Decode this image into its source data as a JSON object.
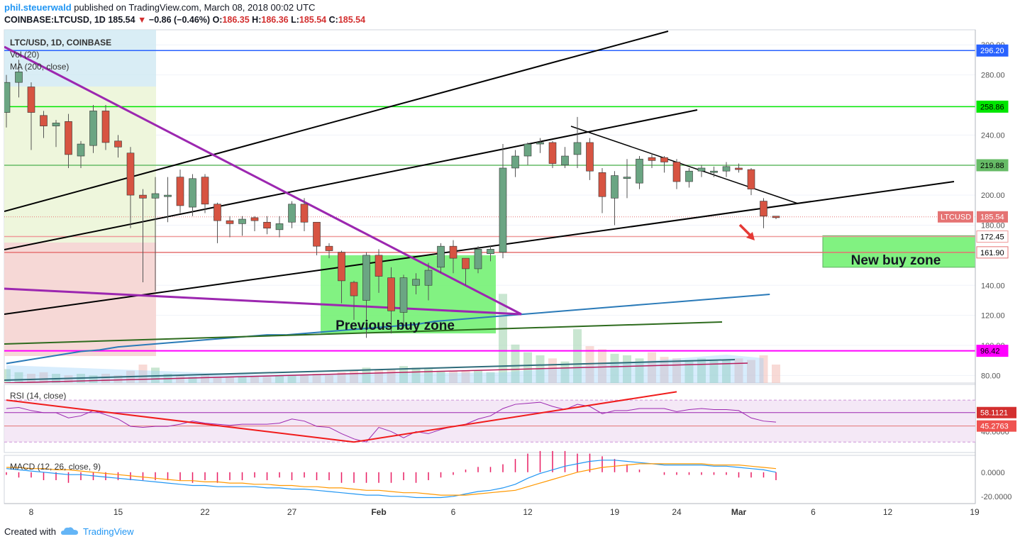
{
  "header": {
    "author": "phil.steuerwald",
    "published": "published on TradingView.com, March 08, 2018 00:02 UTC",
    "symbol_line": "COINBASE:LTCUSD, 1D",
    "price": "185.54",
    "change": "−0.86 (−0.46%)",
    "o_label": "O:",
    "o": "186.35",
    "h_label": "H:",
    "h": "186.36",
    "l_label": "L:",
    "l": "185.54",
    "c_label": "C:",
    "c": "185.54"
  },
  "footer": {
    "created_with": "Created with",
    "brand": "TradingView"
  },
  "colors": {
    "up": "#6ba583",
    "down": "#d75442",
    "buy_zone": "#6cf06c",
    "purple": "#9c27b0",
    "rsi": "#9c27b0",
    "macd": "#2196f3",
    "signal": "#ff9800"
  },
  "chart_data": {
    "type": "candlestick",
    "legend": [
      "LTC/USD, 1D, COINBASE",
      "Vol (20)",
      "MA (200, close)"
    ],
    "x_ticks": [
      "8",
      "15",
      "22",
      "27",
      "Feb",
      "6",
      "12",
      "19",
      "24",
      "Mar",
      "6",
      "12",
      "19"
    ],
    "y_ticks": [
      "300.00",
      "280.00",
      "260.00",
      "240.00",
      "220.00",
      "200.00",
      "180.00",
      "160.00",
      "140.00",
      "120.00",
      "100.00",
      "80.00"
    ],
    "ylim": [
      75,
      310
    ],
    "candles": [
      [
        255,
        275,
        245,
        280
      ],
      [
        275,
        282,
        265,
        290
      ],
      [
        272,
        255,
        230,
        275
      ],
      [
        253,
        246,
        238,
        256
      ],
      [
        246,
        248,
        232,
        250
      ],
      [
        249,
        227,
        218,
        254
      ],
      [
        226,
        234,
        218,
        236
      ],
      [
        233,
        256,
        228,
        260
      ],
      [
        256,
        235,
        230,
        260
      ],
      [
        236,
        232,
        225,
        240
      ],
      [
        228,
        200,
        178,
        232
      ],
      [
        200,
        198,
        142,
        204
      ],
      [
        198,
        201,
        136,
        212
      ],
      [
        199,
        200,
        182,
        212
      ],
      [
        212,
        193,
        188,
        217
      ],
      [
        192,
        211,
        186,
        214
      ],
      [
        212,
        194,
        188,
        214
      ],
      [
        194,
        183,
        168,
        195
      ],
      [
        183,
        181,
        172,
        186
      ],
      [
        181,
        184,
        173,
        186
      ],
      [
        185,
        183,
        176,
        186
      ],
      [
        182,
        178,
        174,
        186
      ],
      [
        177,
        181,
        172,
        186
      ],
      [
        182,
        194,
        178,
        196
      ],
      [
        194,
        182,
        176,
        198
      ],
      [
        182,
        166,
        160,
        182
      ],
      [
        166,
        163,
        158,
        168
      ],
      [
        162,
        143,
        128,
        163
      ],
      [
        142,
        133,
        117,
        143
      ],
      [
        130,
        160,
        105,
        162
      ],
      [
        160,
        146,
        135,
        164
      ],
      [
        145,
        123,
        108,
        152
      ],
      [
        122,
        145,
        112,
        147
      ],
      [
        140,
        144,
        134,
        148
      ],
      [
        140,
        150,
        130,
        155
      ],
      [
        152,
        166,
        148,
        168
      ],
      [
        166,
        158,
        148,
        170
      ],
      [
        158,
        151,
        140,
        158
      ],
      [
        151,
        164,
        148,
        166
      ],
      [
        161,
        164,
        156,
        166
      ],
      [
        162,
        218,
        158,
        234
      ],
      [
        218,
        226,
        212,
        230
      ],
      [
        226,
        234,
        220,
        235
      ],
      [
        234,
        235,
        228,
        238
      ],
      [
        235,
        221,
        218,
        236
      ],
      [
        220,
        226,
        218,
        232
      ],
      [
        227,
        235,
        218,
        252
      ],
      [
        235,
        216,
        210,
        238
      ],
      [
        215,
        199,
        188,
        218
      ],
      [
        198,
        213,
        180,
        216
      ],
      [
        212,
        212,
        198,
        224
      ],
      [
        208,
        224,
        204,
        226
      ],
      [
        225,
        223,
        218,
        228
      ],
      [
        225,
        222,
        215,
        226
      ],
      [
        222,
        209,
        204,
        224
      ],
      [
        209,
        216,
        205,
        218
      ],
      [
        216,
        218,
        212,
        220
      ],
      [
        216,
        216,
        212,
        219
      ],
      [
        216,
        219,
        212,
        222
      ],
      [
        218,
        217,
        215,
        221
      ],
      [
        217,
        204,
        200,
        218
      ],
      [
        196,
        186,
        178,
        198
      ],
      [
        186,
        185,
        184,
        186
      ]
    ],
    "horizontal_levels": [
      {
        "label": "296.20",
        "value": 296.2,
        "color": "#2962ff"
      },
      {
        "label": "258.86",
        "value": 258.86,
        "color": "#00e600"
      },
      {
        "label": "219.88",
        "value": 219.88,
        "color": "#66bb66"
      },
      {
        "label": "172.45",
        "value": 172.45,
        "color": "#ef9a9a"
      },
      {
        "label": "161.90",
        "value": 161.9,
        "color": "#e57373"
      },
      {
        "label": "96.42",
        "value": 96.42,
        "color": "#ff00ff"
      }
    ],
    "last_price": {
      "label": "LTCUSD",
      "value": "185.54"
    },
    "annotations": {
      "previous_zone": "Previous buy zone",
      "new_zone": "New buy zone"
    },
    "ma200": [
      88,
      90,
      92,
      94,
      96,
      97,
      99,
      100,
      101,
      102,
      103,
      104,
      105,
      106,
      107,
      107,
      108,
      109,
      110,
      111,
      112,
      113,
      114,
      116,
      117,
      118,
      119,
      120,
      121,
      122,
      123,
      124,
      125,
      126,
      127,
      128,
      129,
      130,
      131,
      132,
      133,
      134
    ],
    "volume": [
      9,
      7,
      6,
      7,
      6,
      5,
      6,
      5,
      6,
      5,
      8,
      12,
      10,
      6,
      5,
      4,
      5,
      4,
      4,
      4,
      4,
      4,
      5,
      5,
      5,
      6,
      5,
      7,
      8,
      10,
      9,
      9,
      11,
      10,
      9,
      8,
      8,
      8,
      8,
      7,
      58,
      25,
      20,
      18,
      16,
      14,
      35,
      24,
      22,
      19,
      18,
      16,
      20,
      17,
      16,
      15,
      16,
      15,
      15,
      16,
      15,
      18,
      12
    ],
    "rsi": {
      "label": "RSI (14, close)",
      "ticks": [
        "40.0000"
      ],
      "ylim": [
        20,
        85
      ],
      "upper": "58.1121",
      "lower": "45.2763",
      "values": [
        62,
        63,
        60,
        58,
        58,
        53,
        55,
        60,
        56,
        52,
        45,
        44,
        45,
        45,
        47,
        50,
        48,
        47,
        46,
        47,
        47,
        47,
        48,
        52,
        50,
        45,
        44,
        38,
        33,
        30,
        44,
        40,
        34,
        40,
        38,
        42,
        45,
        47,
        52,
        55,
        62,
        66,
        67,
        68,
        64,
        61,
        66,
        64,
        57,
        60,
        60,
        62,
        62,
        62,
        59,
        61,
        62,
        61,
        61,
        60,
        53,
        50,
        49
      ],
      "red_lines": [
        [
          0,
          70,
          28,
          30
        ],
        [
          28,
          30,
          54,
          78
        ]
      ]
    },
    "macd": {
      "label": "MACD (12, 26, close, 9)",
      "ticks": [
        "0.0000",
        "-20.0000"
      ],
      "ylim": [
        -26,
        14
      ],
      "macd": [
        3,
        2,
        1,
        0,
        -1,
        -2,
        -2,
        -3,
        -4,
        -5,
        -6,
        -7,
        -8,
        -9,
        -10,
        -11,
        -11,
        -12,
        -12,
        -12,
        -12,
        -13,
        -13,
        -14,
        -14,
        -15,
        -16,
        -17,
        -18,
        -19,
        -19,
        -20,
        -20,
        -21,
        -21,
        -21,
        -20,
        -18,
        -16,
        -15,
        -13,
        -10,
        -5,
        -1,
        2,
        5,
        7,
        9,
        10,
        10,
        9,
        8,
        7,
        6,
        6,
        6,
        6,
        5,
        5,
        4,
        3,
        2,
        0
      ],
      "signal": [
        4,
        4,
        3,
        3,
        2,
        2,
        1,
        0,
        -1,
        -2,
        -3,
        -4,
        -5,
        -6,
        -7,
        -7,
        -8,
        -8,
        -9,
        -9,
        -10,
        -10,
        -11,
        -11,
        -12,
        -12,
        -13,
        -13,
        -14,
        -15,
        -15,
        -16,
        -17,
        -17,
        -18,
        -19,
        -19,
        -19,
        -18,
        -17,
        -16,
        -15,
        -12,
        -9,
        -6,
        -3,
        0,
        2,
        4,
        5,
        6,
        7,
        7,
        7,
        7,
        7,
        7,
        6,
        6,
        6,
        5,
        4,
        3
      ]
    }
  }
}
